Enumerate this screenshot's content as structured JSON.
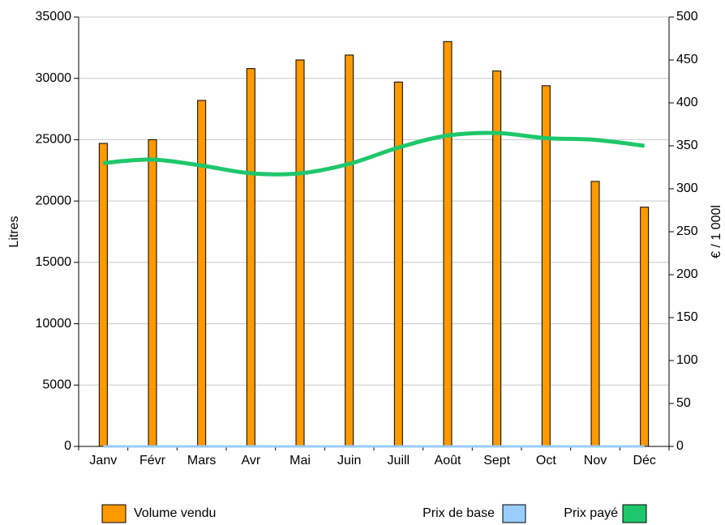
{
  "chart_data": {
    "type": "bar_line",
    "categories": [
      "Janv",
      "Févr",
      "Mars",
      "Avr",
      "Mai",
      "Juin",
      "Juill",
      "Août",
      "Sept",
      "Oct",
      "Nov",
      "Déc"
    ],
    "series": [
      {
        "name": "Volume vendu",
        "type": "bar",
        "color": "#ff9900",
        "values": [
          24700,
          25000,
          28200,
          30800,
          31500,
          31900,
          29700,
          33000,
          30600,
          29400,
          21600,
          19500
        ]
      },
      {
        "name": "Prix de base",
        "type": "line",
        "axis": "y2",
        "color": "#99ccff",
        "values": [
          0,
          0,
          0,
          0,
          0,
          0,
          0,
          0,
          0,
          0,
          0,
          0
        ]
      },
      {
        "name": "Prix payé",
        "type": "line",
        "axis": "y2",
        "color": "#1ec76b",
        "values": [
          330,
          334,
          327,
          318,
          318,
          329,
          348,
          362,
          365,
          359,
          357,
          350
        ]
      }
    ],
    "ylabel": "Litres",
    "y2label": "€ / 1 000l",
    "ylim": [
      0,
      35000
    ],
    "yticks": [
      0,
      5000,
      10000,
      15000,
      20000,
      25000,
      30000,
      35000
    ],
    "y2lim": [
      0,
      500
    ],
    "y2ticks": [
      0,
      50,
      100,
      150,
      200,
      250,
      300,
      350,
      400,
      450,
      500
    ],
    "grid": true,
    "legend": "bottom"
  }
}
